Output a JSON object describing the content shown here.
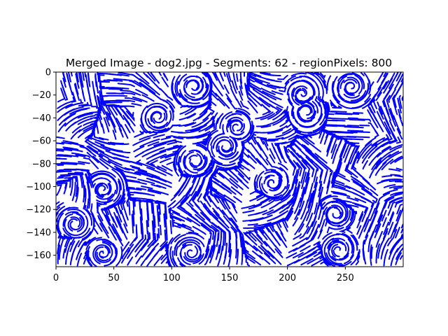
{
  "chart_data": {
    "type": "line",
    "title": "Merged Image - dog2.jpg - Segments: 62 - regionPixels: 800",
    "xlabel": "",
    "ylabel": "",
    "xlim": [
      0,
      300
    ],
    "ylim": [
      -170,
      0
    ],
    "x_ticks": [
      0,
      50,
      100,
      150,
      200,
      250
    ],
    "y_ticks": [
      0,
      -20,
      -40,
      -60,
      -80,
      -100,
      -120,
      -140,
      -160
    ],
    "x_tick_labels": [
      "0",
      "50",
      "100",
      "150",
      "200",
      "250"
    ],
    "y_tick_labels": [
      "0",
      "−20",
      "−40",
      "−60",
      "−80",
      "−100",
      "−120",
      "−140",
      "−160"
    ],
    "grid": false,
    "series_color": "#0000ff",
    "description_note": "",
    "series": [
      {
        "values": []
      }
    ]
  }
}
